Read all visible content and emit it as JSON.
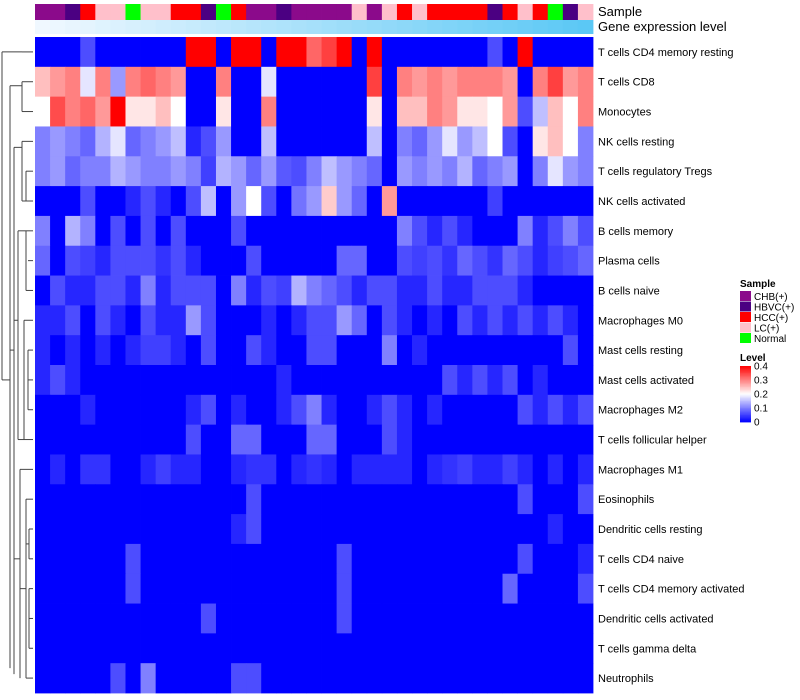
{
  "chart_data": {
    "type": "heatmap",
    "annotation_tracks": [
      "Sample",
      "Gene expression level"
    ],
    "sample_groups": [
      "CHB(+)",
      "CHB(+)",
      "HBVC(+)",
      "HCC(+)",
      "LC(+)",
      "LC(+)",
      "Normal",
      "LC(+)",
      "LC(+)",
      "HCC(+)",
      "HCC(+)",
      "HBVC(+)",
      "Normal",
      "HCC(+)",
      "CHB(+)",
      "CHB(+)",
      "HBVC(+)",
      "CHB(+)",
      "CHB(+)",
      "CHB(+)",
      "CHB(+)",
      "LC(+)",
      "CHB(+)",
      "LC(+)",
      "HCC(+)",
      "LC(+)",
      "HCC(+)",
      "HCC(+)",
      "HCC(+)",
      "HCC(+)",
      "HBVC(+)",
      "HCC(+)",
      "LC(+)",
      "HCC(+)",
      "Normal",
      "HBVC(+)",
      "LC(+)"
    ],
    "rows": [
      "T cells CD4 memory resting",
      "T cells CD8",
      "Monocytes",
      "NK cells resting",
      "T cells regulatory  Tregs",
      "NK cells activated",
      "B cells memory",
      "Plasma cells",
      "B cells naive",
      "Macrophages M0",
      "Mast cells resting",
      "Mast cells activated",
      "Macrophages M2",
      "T cells follicular helper",
      "Macrophages M1",
      "Eosinophils",
      "Dendritic cells resting",
      "T cells CD4 naive",
      "T cells CD4 memory activated",
      "Dendritic cells activated",
      "T cells gamma delta",
      "Neutrophils"
    ],
    "values": [
      [
        0,
        0,
        0,
        0.06,
        0,
        0,
        0,
        0,
        0,
        0,
        0.4,
        0.4,
        0,
        0.4,
        0.4,
        0,
        0.4,
        0.4,
        0.32,
        0.35,
        0.4,
        0,
        0.4,
        0,
        0,
        0,
        0,
        0,
        0,
        0,
        0.06,
        0,
        0.4,
        0,
        0,
        0,
        0
      ],
      [
        0.25,
        0.28,
        0.3,
        0.18,
        0.3,
        0.12,
        0.3,
        0.32,
        0.3,
        0.28,
        0,
        0,
        0.3,
        0,
        0,
        0.18,
        0,
        0,
        0,
        0,
        0,
        0,
        0.35,
        0,
        0.3,
        0.28,
        0.3,
        0.28,
        0.3,
        0.3,
        0.3,
        0.28,
        0,
        0.3,
        0.35,
        0.28,
        0.3
      ],
      [
        0.2,
        0.34,
        0.3,
        0.32,
        0.28,
        0.4,
        0.22,
        0.22,
        0.25,
        0.2,
        0,
        0,
        0.22,
        0,
        0,
        0.3,
        0,
        0,
        0,
        0,
        0,
        0,
        0.22,
        0,
        0.25,
        0.25,
        0.3,
        0.28,
        0.22,
        0.22,
        0.2,
        0.28,
        0.06,
        0.15,
        0.25,
        0.2,
        0.3
      ],
      [
        0.1,
        0.12,
        0.1,
        0.08,
        0.14,
        0.18,
        0.08,
        0.1,
        0.12,
        0.15,
        0.03,
        0.06,
        0.12,
        0,
        0,
        0.15,
        0,
        0,
        0,
        0,
        0,
        0,
        0.15,
        0,
        0.1,
        0.08,
        0.12,
        0.18,
        0.12,
        0.15,
        0.2,
        0.06,
        0,
        0.22,
        0.25,
        0.2,
        0.1
      ],
      [
        0.1,
        0.12,
        0.08,
        0.1,
        0.1,
        0.14,
        0.12,
        0.1,
        0.1,
        0.12,
        0.1,
        0.05,
        0.14,
        0.12,
        0.08,
        0.12,
        0.07,
        0.06,
        0.1,
        0.15,
        0.12,
        0.1,
        0.08,
        0,
        0.12,
        0.1,
        0.12,
        0.1,
        0.14,
        0.08,
        0.1,
        0.12,
        0,
        0.1,
        0.18,
        0.12,
        0.1
      ],
      [
        0,
        0,
        0,
        0.06,
        0,
        0,
        0.03,
        0.06,
        0.03,
        0,
        0.06,
        0.15,
        0,
        0.12,
        0.2,
        0.06,
        0,
        0.09,
        0.12,
        0.24,
        0.12,
        0.08,
        0,
        0.28,
        0,
        0,
        0,
        0,
        0,
        0,
        0.05,
        0,
        0,
        0,
        0,
        0,
        0
      ],
      [
        0.1,
        0,
        0.14,
        0.1,
        0,
        0.06,
        0,
        0.06,
        0,
        0.06,
        0,
        0,
        0,
        0.06,
        0,
        0,
        0,
        0,
        0,
        0,
        0,
        0,
        0,
        0,
        0.1,
        0.06,
        0.03,
        0.06,
        0.03,
        0,
        0,
        0,
        0.1,
        0.03,
        0.06,
        0.1,
        0.06
      ],
      [
        0.08,
        0,
        0.06,
        0.05,
        0.03,
        0.06,
        0.06,
        0.06,
        0.04,
        0.06,
        0.03,
        0,
        0,
        0,
        0.06,
        0,
        0,
        0,
        0,
        0,
        0.08,
        0.08,
        0,
        0,
        0.06,
        0.05,
        0.06,
        0.04,
        0.08,
        0.06,
        0.04,
        0.08,
        0.06,
        0.03,
        0.05,
        0.06,
        0.08
      ],
      [
        0,
        0.06,
        0.03,
        0.03,
        0.06,
        0.06,
        0.03,
        0.1,
        0.03,
        0.06,
        0.06,
        0.06,
        0,
        0.1,
        0.03,
        0.06,
        0.05,
        0.14,
        0.1,
        0.08,
        0.06,
        0.03,
        0.06,
        0.06,
        0.03,
        0.03,
        0.06,
        0.03,
        0.03,
        0.06,
        0.06,
        0.06,
        0.03,
        0,
        0,
        0,
        0
      ],
      [
        0.03,
        0.03,
        0.06,
        0,
        0.06,
        0.03,
        0,
        0.06,
        0.03,
        0.03,
        0.12,
        0.06,
        0,
        0,
        0,
        0.03,
        0,
        0.03,
        0.06,
        0.06,
        0.12,
        0.08,
        0,
        0.06,
        0.03,
        0,
        0.03,
        0,
        0.06,
        0.03,
        0.06,
        0.03,
        0.06,
        0.03,
        0.06,
        0.03,
        0
      ],
      [
        0.03,
        0,
        0.03,
        0,
        0.03,
        0,
        0.03,
        0.05,
        0.05,
        0.03,
        0,
        0.06,
        0,
        0,
        0.06,
        0.03,
        0,
        0,
        0.06,
        0.06,
        0,
        0,
        0,
        0.1,
        0,
        0.03,
        0,
        0,
        0,
        0,
        0,
        0,
        0,
        0,
        0,
        0.06,
        0
      ],
      [
        0.03,
        0.06,
        0.03,
        0,
        0,
        0,
        0,
        0,
        0,
        0,
        0,
        0,
        0,
        0,
        0,
        0,
        0.03,
        0,
        0,
        0,
        0,
        0,
        0,
        0,
        0,
        0,
        0,
        0.06,
        0.03,
        0.06,
        0.03,
        0.06,
        0,
        0.03,
        0,
        0,
        0
      ],
      [
        0,
        0,
        0,
        0.03,
        0,
        0,
        0,
        0,
        0,
        0,
        0.03,
        0.06,
        0,
        0.03,
        0,
        0,
        0.03,
        0.06,
        0.1,
        0.03,
        0,
        0,
        0.03,
        0.06,
        0.03,
        0,
        0.03,
        0,
        0,
        0,
        0,
        0,
        0.06,
        0.03,
        0.06,
        0.03,
        0.06
      ],
      [
        0,
        0,
        0,
        0,
        0,
        0,
        0,
        0,
        0,
        0,
        0.06,
        0,
        0,
        0.08,
        0.08,
        0,
        0,
        0,
        0.08,
        0.08,
        0,
        0,
        0,
        0.06,
        0.03,
        0,
        0,
        0,
        0,
        0,
        0,
        0,
        0,
        0,
        0,
        0,
        0
      ],
      [
        0,
        0.03,
        0,
        0.04,
        0.04,
        0,
        0,
        0.03,
        0.05,
        0.03,
        0.03,
        0,
        0,
        0.03,
        0.04,
        0.04,
        0,
        0.03,
        0.04,
        0.03,
        0,
        0.03,
        0.03,
        0.03,
        0.03,
        0,
        0.03,
        0.04,
        0.05,
        0.03,
        0.03,
        0.05,
        0.03,
        0,
        0.03,
        0,
        0.03
      ],
      [
        0,
        0,
        0,
        0,
        0,
        0,
        0,
        0,
        0,
        0,
        0,
        0,
        0,
        0,
        0.06,
        0,
        0,
        0,
        0,
        0,
        0,
        0,
        0,
        0,
        0,
        0,
        0,
        0,
        0,
        0,
        0,
        0,
        0.06,
        0,
        0,
        0,
        0.06
      ],
      [
        0,
        0,
        0,
        0,
        0,
        0,
        0,
        0,
        0,
        0,
        0,
        0,
        0,
        0.03,
        0.06,
        0,
        0,
        0,
        0,
        0,
        0,
        0,
        0,
        0,
        0,
        0,
        0,
        0,
        0,
        0,
        0,
        0,
        0,
        0,
        0.03,
        0,
        0
      ],
      [
        0,
        0,
        0,
        0,
        0,
        0,
        0.06,
        0,
        0,
        0,
        0,
        0,
        0,
        0,
        0,
        0,
        0,
        0,
        0,
        0,
        0.06,
        0,
        0,
        0,
        0,
        0,
        0,
        0,
        0,
        0,
        0,
        0,
        0.06,
        0,
        0,
        0,
        0.03
      ],
      [
        0,
        0,
        0,
        0,
        0,
        0,
        0.06,
        0,
        0,
        0,
        0,
        0,
        0,
        0,
        0,
        0,
        0,
        0,
        0,
        0,
        0.06,
        0,
        0,
        0,
        0,
        0,
        0,
        0,
        0,
        0,
        0,
        0.08,
        0,
        0,
        0,
        0,
        0.06
      ],
      [
        0,
        0,
        0,
        0,
        0,
        0,
        0,
        0,
        0,
        0,
        0,
        0.06,
        0,
        0,
        0,
        0,
        0,
        0,
        0,
        0,
        0.06,
        0,
        0,
        0,
        0,
        0,
        0,
        0,
        0,
        0,
        0,
        0,
        0,
        0,
        0,
        0,
        0
      ],
      [
        0,
        0,
        0,
        0,
        0,
        0,
        0,
        0,
        0,
        0,
        0,
        0,
        0,
        0,
        0,
        0,
        0,
        0,
        0,
        0,
        0,
        0,
        0,
        0,
        0,
        0,
        0,
        0,
        0,
        0,
        0,
        0,
        0,
        0,
        0,
        0,
        0
      ],
      [
        0,
        0,
        0,
        0,
        0,
        0.06,
        0,
        0.1,
        0,
        0,
        0,
        0,
        0,
        0.06,
        0.06,
        0,
        0,
        0,
        0,
        0,
        0,
        0,
        0,
        0,
        0,
        0,
        0,
        0,
        0,
        0,
        0,
        0,
        0,
        0,
        0,
        0,
        0
      ]
    ],
    "colorscale": {
      "min": 0,
      "max": 0.4,
      "low": "#0000ff",
      "mid": "#ffffff",
      "high": "#ff0000",
      "mid_value": 0.2
    },
    "legends": {
      "sample": {
        "title": "Sample",
        "entries": [
          {
            "label": "CHB(+)",
            "color": "#8b0a8b"
          },
          {
            "label": "HBVC(+)",
            "color": "#4b0082"
          },
          {
            "label": "HCC(+)",
            "color": "#ff0000"
          },
          {
            "label": "LC(+)",
            "color": "#ffc0cb"
          },
          {
            "label": "Normal",
            "color": "#00ff00"
          }
        ]
      },
      "level": {
        "title": "Level",
        "ticks": [
          0.4,
          0.3,
          0.2,
          0.1,
          0
        ]
      }
    },
    "gene_track_color": "#5bc8f5"
  }
}
